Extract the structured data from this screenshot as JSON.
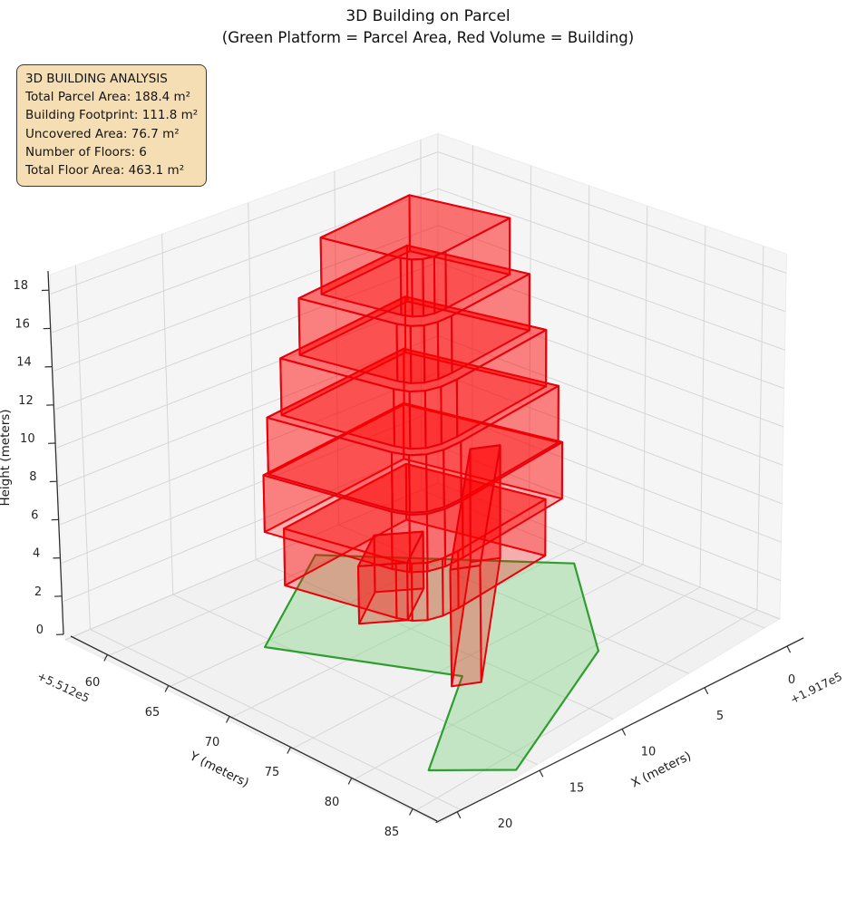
{
  "title": {
    "line1": "3D Building on Parcel",
    "line2": "(Green Platform = Parcel Area, Red Volume = Building)"
  },
  "info_box": {
    "title": "3D BUILDING ANALYSIS",
    "lines": [
      "Total Parcel Area: 188.4 m²",
      "Building Footprint: 111.8 m²",
      "Uncovered Area: 76.7 m²",
      "Number of Floors: 6",
      "Total Floor Area: 463.1 m²"
    ]
  },
  "chart_data": {
    "type": "3d-building",
    "title": "3D Building on Parcel",
    "subtitle": "(Green Platform = Parcel Area, Red Volume = Building)",
    "legend_meaning": {
      "green": "Parcel Area",
      "red": "Building"
    },
    "axes": {
      "x": {
        "label": "X (meters)",
        "ticks": [
          0,
          5,
          10,
          15,
          20
        ],
        "offset_text": "+1.917e5",
        "range": [
          -1,
          21.5
        ]
      },
      "y": {
        "label": "Y (meters)",
        "ticks": [
          60,
          65,
          70,
          75,
          80,
          85
        ],
        "offset_text": "+5.512e5",
        "range": [
          57,
          87
        ]
      },
      "z": {
        "label": "Height (meters)",
        "ticks": [
          0,
          2,
          4,
          6,
          8,
          10,
          12,
          14,
          16,
          18
        ],
        "range": [
          0,
          19
        ]
      }
    },
    "analysis": {
      "total_parcel_area_m2": 188.4,
      "building_footprint_m2": 111.8,
      "uncovered_area_m2": 76.7,
      "number_of_floors": 6,
      "total_floor_area_m2": 463.1
    },
    "parcel": {
      "area_m2": 188.4,
      "polygon": [
        [
          15.7,
          65.5
        ],
        [
          7.9,
          59.1
        ],
        [
          0.9,
          71.6
        ],
        [
          6.1,
          80.7
        ],
        [
          16.0,
          86.5
        ],
        [
          18.6,
          82.6
        ],
        [
          11.65,
          76.5
        ]
      ]
    },
    "building": {
      "floors": 6,
      "floor_height_m": 3,
      "total_height_m": 18,
      "footprint_area_m2": 111.8,
      "footprint": [
        [
          11.7,
          60.2
        ],
        [
          2.3,
          58.8
        ],
        [
          0.6,
          70.1
        ],
        [
          7.53,
          71.13
        ],
        [
          8.63,
          71.13
        ],
        [
          9.48,
          70.79
        ],
        [
          10.05,
          70.09
        ],
        [
          10.37,
          69.03
        ]
      ],
      "floor_scales": [
        0.88,
        1.0,
        0.97,
        0.88,
        0.76,
        0.62
      ],
      "setback_pivot": [
        4.8,
        64.0
      ],
      "wing": {
        "polygon": [
          [
            3.7,
            66.5
          ],
          [
            2.56,
            67.48
          ],
          [
            11.41,
            77.78
          ],
          [
            12.55,
            76.8
          ]
        ],
        "height_m": 6
      },
      "annex": {
        "polygon": [
          [
            11.2,
            67.3
          ],
          [
            8.6,
            65.1
          ],
          [
            6.9,
            66.9
          ],
          [
            9.5,
            69.1
          ]
        ],
        "height_m": 3
      }
    },
    "colors": {
      "building_face": "rgba(255,0,0,0.28)",
      "building_top": "rgba(255,0,0,0.36)",
      "building_edge": "#e8000b",
      "parcel_face": "rgba(132,211,132,0.42)",
      "parcel_edge": "#2e9e30",
      "pane_floor": "#f1f1f1",
      "pane_wall": "#f5f5f5",
      "grid": "#d6d6d6",
      "spine": "#2f2f2f",
      "tick_text": "#262626",
      "label_text": "#1a1a1a",
      "info_bg": "#f5deb3",
      "info_border": "#3a3a3a"
    }
  }
}
